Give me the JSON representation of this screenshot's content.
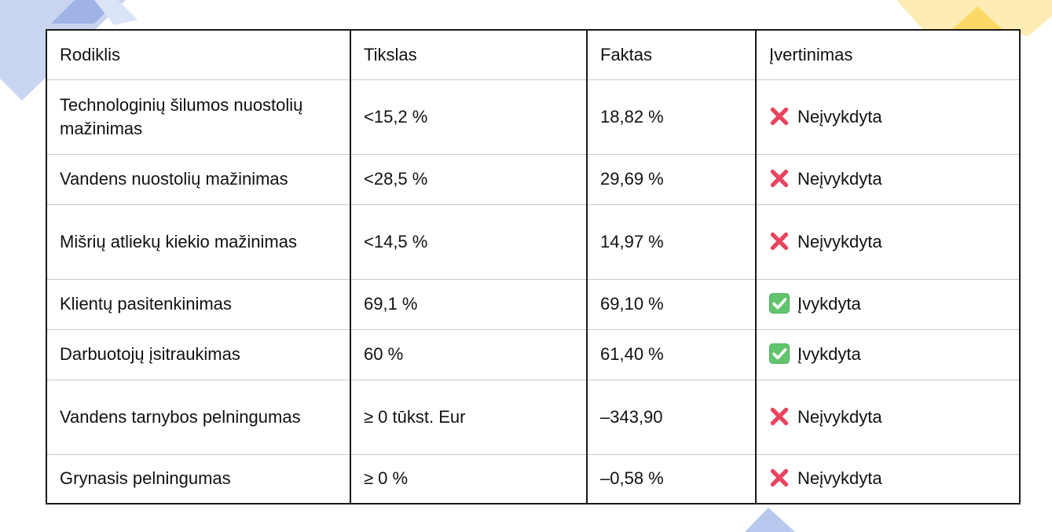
{
  "table": {
    "headers": [
      "Rodiklis",
      "Tikslas",
      "Faktas",
      "Įvertinimas"
    ],
    "rows": [
      {
        "indicator": "Technologinių šilumos nuostolių mažinimas",
        "target": "<15,2 %",
        "actual": "18,82 %",
        "status": "fail",
        "evaluation": "Neįvykdyta"
      },
      {
        "indicator": "Vandens nuostolių mažinimas",
        "target": "<28,5 %",
        "actual": "29,69 %",
        "status": "fail",
        "evaluation": "Neįvykdyta"
      },
      {
        "indicator": "Mišrių atliekų kiekio mažinimas",
        "target": "<14,5 %",
        "actual": "14,97 %",
        "status": "fail",
        "evaluation": "Neįvykdyta"
      },
      {
        "indicator": "Klientų pasitenkinimas",
        "target": "69,1 %",
        "actual": "69,10 %",
        "status": "pass",
        "evaluation": "Įvykdyta"
      },
      {
        "indicator": "Darbuotojų įsitraukimas",
        "target": "60 %",
        "actual": "61,40 %",
        "status": "pass",
        "evaluation": "Įvykdyta"
      },
      {
        "indicator": "Vandens tarnybos pelningumas",
        "target": "≥ 0 tūkst. Eur",
        "actual": "–343,90",
        "status": "fail",
        "evaluation": "Neįvykdyta"
      },
      {
        "indicator": "Grynasis pelningumas",
        "target": "≥ 0 %",
        "actual": "–0,58 %",
        "status": "fail",
        "evaluation": "Neįvykdyta"
      }
    ]
  },
  "icons": {
    "fail": "cross-mark-icon",
    "pass": "check-mark-button-icon"
  },
  "colors": {
    "fail": "#e8445f",
    "pass_bg": "#63c46e",
    "deco_blue": "#aebfe8",
    "deco_yellow": "#fde7a3"
  }
}
